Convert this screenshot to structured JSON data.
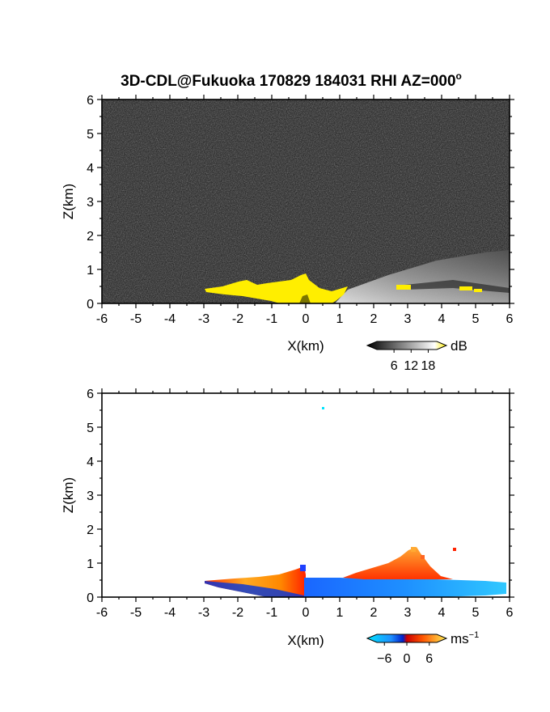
{
  "title": "3D-CDL@Fukuoka 170829 184031 RHI AZ=000",
  "title_degree": "o",
  "colors": {
    "reflectivity_high": "#ffee00",
    "background_noise": "#202020",
    "velocity_negative": "#1e90ff",
    "velocity_positive": "#ff4500"
  },
  "chart_data": [
    {
      "type": "heatmap",
      "panel": "reflectivity",
      "xlabel": "X(km)",
      "ylabel": "Z(km)",
      "xlim": [
        -6,
        6
      ],
      "ylim": [
        0,
        6
      ],
      "xticks": [
        "-6",
        "-5",
        "-4",
        "-3",
        "-2",
        "-1",
        "0",
        "1",
        "2",
        "3",
        "4",
        "5",
        "6"
      ],
      "yticks": [
        "0",
        "1",
        "2",
        "3",
        "4",
        "5",
        "6"
      ],
      "colorbar": {
        "label": "dB",
        "ticks": [
          "6",
          "12",
          "18"
        ],
        "range": [
          0,
          21
        ]
      },
      "regions": [
        {
          "name": "strong echo (yellow)",
          "x": [
            -3.0,
            1.1
          ],
          "z_top": [
            0.4,
            0.9
          ],
          "value_db": ">18"
        },
        {
          "name": "aerosol layer (grey)",
          "x": [
            1.1,
            6.0
          ],
          "z_top": [
            0.3,
            1.6
          ],
          "value_db": "6-15"
        },
        {
          "name": "patches (yellow)",
          "x": [
            2.8,
            5.2
          ],
          "z": [
            0.4,
            0.5
          ],
          "value_db": ">18"
        }
      ]
    },
    {
      "type": "heatmap",
      "panel": "doppler velocity",
      "xlabel": "X(km)",
      "ylabel": "Z(km)",
      "xlim": [
        -6,
        6
      ],
      "ylim": [
        0,
        6
      ],
      "xticks": [
        "-6",
        "-5",
        "-4",
        "-3",
        "-2",
        "-1",
        "0",
        "1",
        "2",
        "3",
        "4",
        "5",
        "6"
      ],
      "yticks": [
        "0",
        "1",
        "2",
        "3",
        "4",
        "5",
        "6"
      ],
      "colorbar": {
        "label": "ms",
        "label_exponent": "−1",
        "ticks": [
          "−6",
          "0",
          "6"
        ],
        "range": [
          -8,
          8
        ]
      },
      "regions": [
        {
          "name": "positive velocity wedge",
          "x": [
            -3.0,
            0.0
          ],
          "z_top": [
            0.4,
            0.8
          ],
          "value_ms": [
            2,
            6
          ]
        },
        {
          "name": "negative velocity layer",
          "x": [
            0.0,
            6.0
          ],
          "z_top": [
            0.5,
            0.4
          ],
          "value_ms": [
            -6,
            -3
          ]
        },
        {
          "name": "positive velocity plume",
          "x": [
            1.2,
            4.3
          ],
          "z_top": [
            0.5,
            1.4
          ],
          "value_ms": [
            1,
            5
          ]
        }
      ]
    }
  ]
}
